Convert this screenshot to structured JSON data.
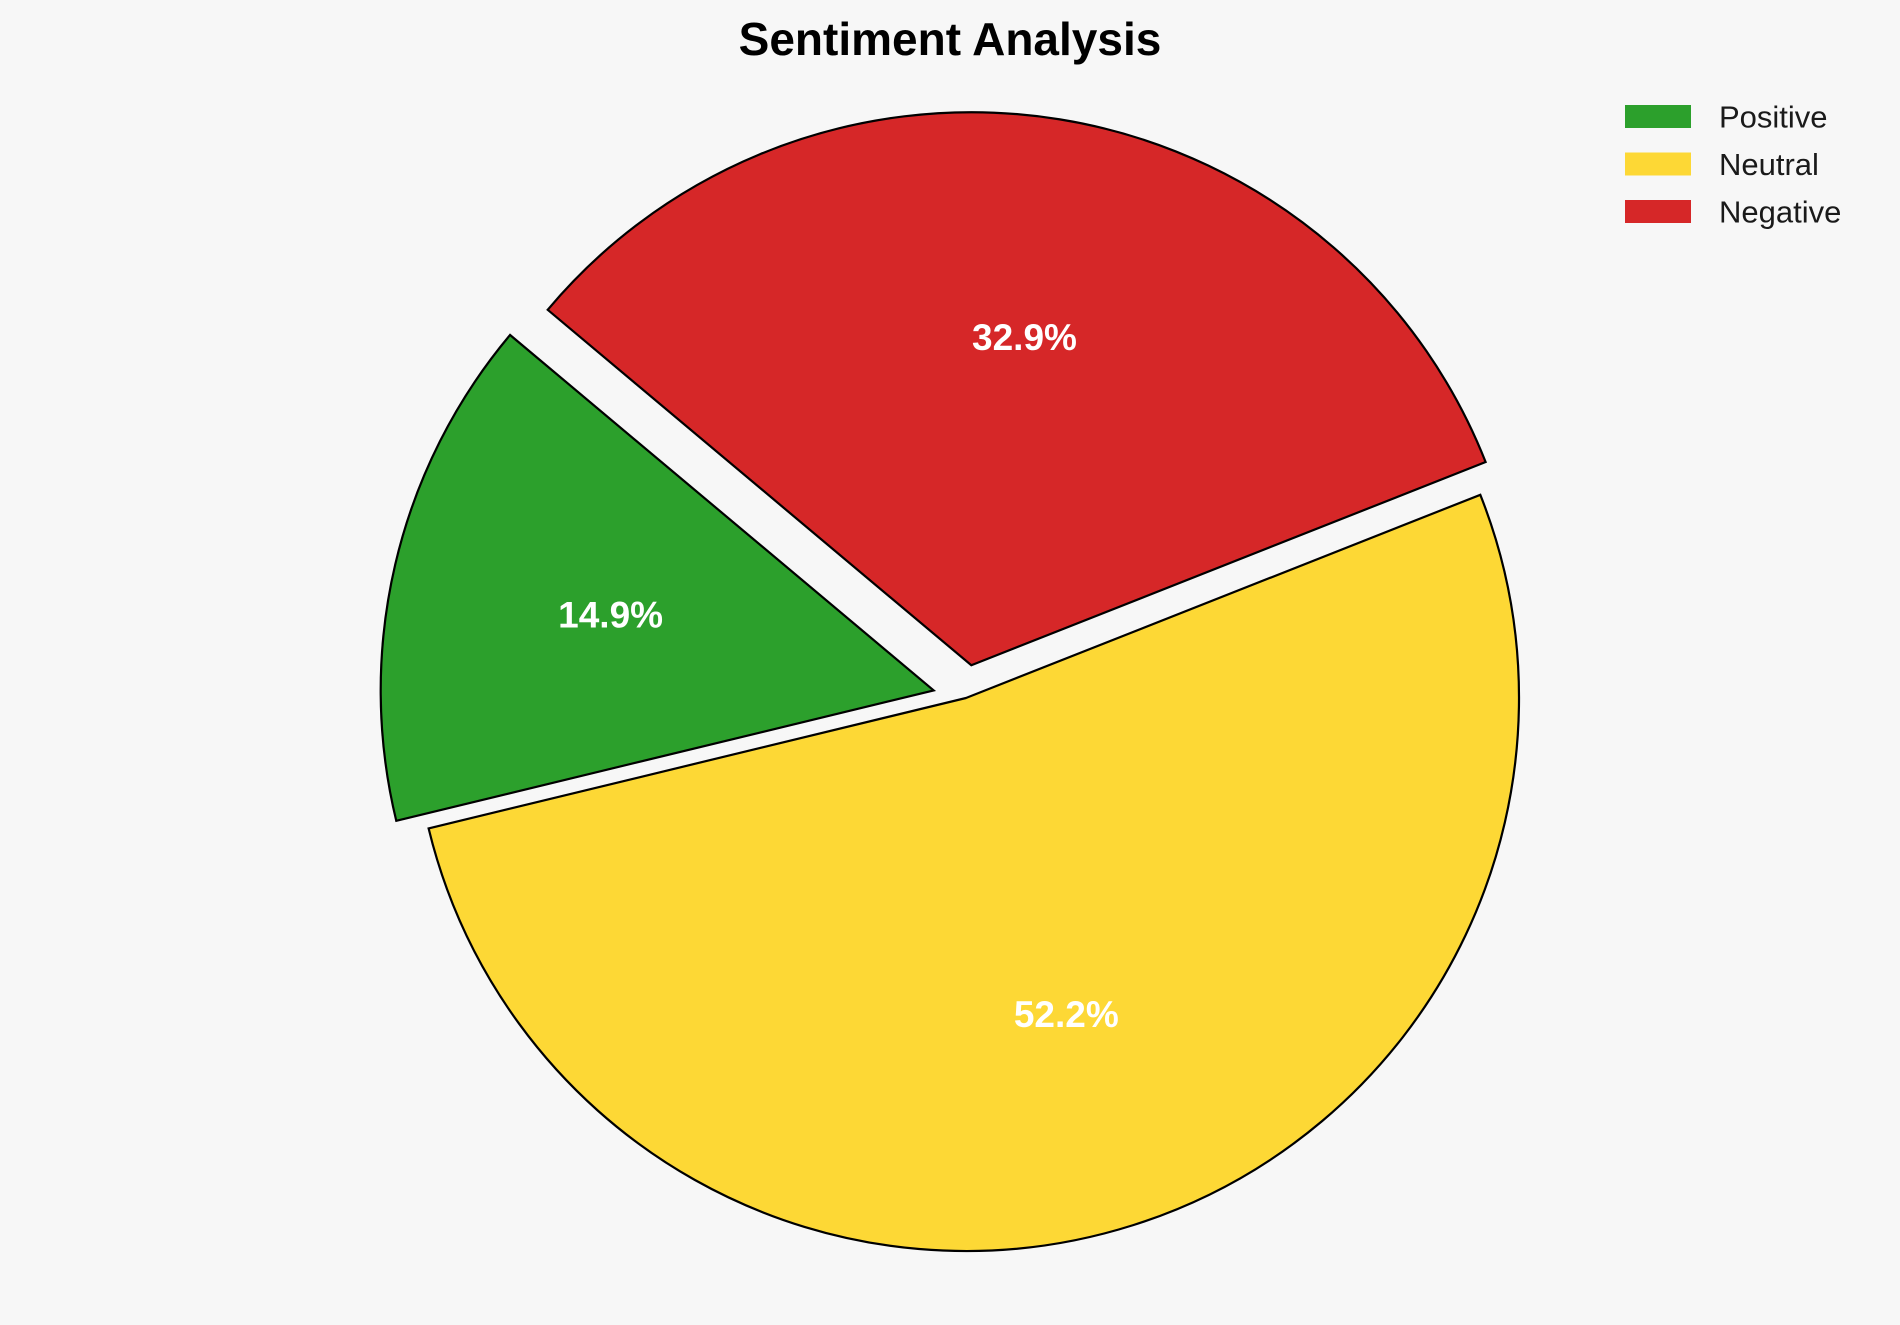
{
  "chart_data": {
    "type": "pie",
    "title": "Sentiment Analysis",
    "slices": [
      {
        "name": "Positive",
        "value": 14.9,
        "label": "14.9%",
        "color": "#2ca02c"
      },
      {
        "name": "Neutral",
        "value": 52.2,
        "label": "52.2%",
        "color": "#fdd835"
      },
      {
        "name": "Negative",
        "value": 32.9,
        "label": "32.9%",
        "color": "#d62728"
      }
    ],
    "start_angle_deg": 140,
    "direction": "counterclockwise",
    "exploded": [
      "Positive",
      "Negative"
    ],
    "edge_color": "#000000",
    "legend": {
      "placement": "top-right",
      "entries": [
        "Positive",
        "Neutral",
        "Negative"
      ]
    },
    "background_color": "#f7f7f7"
  }
}
